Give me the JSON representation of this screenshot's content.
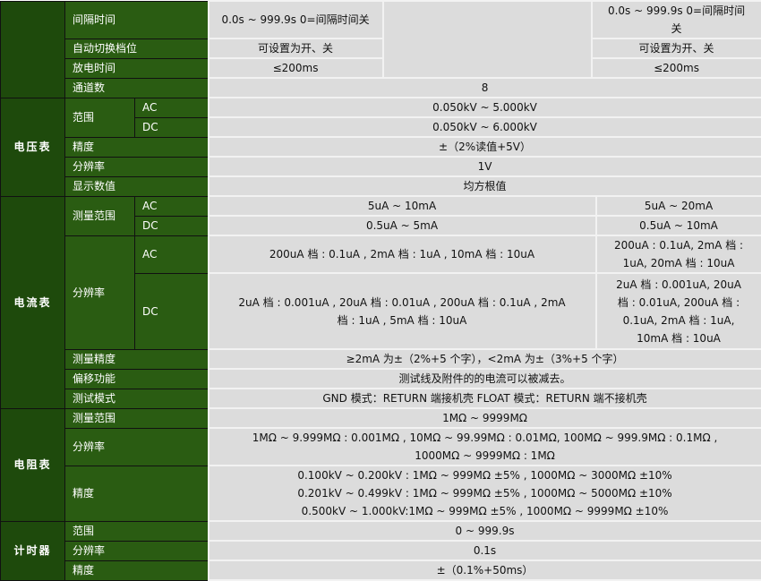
{
  "top": {
    "interval": {
      "label": "间隔时间",
      "a": "0.0s ~ 999.9s      0=间隔时间关",
      "b": "0.0s ~ 999.9s      0=间隔时间\n关"
    },
    "auto_range": {
      "label": "自动切换档位",
      "a": "可设置为开、关",
      "b": "可设置为开、关"
    },
    "discharge": {
      "label": "放电时间",
      "a": "≤200ms",
      "b": "≤200ms"
    },
    "channels": {
      "label": "通道数",
      "value": "8"
    }
  },
  "voltmeter": {
    "title": "电压表",
    "range_label": "范围",
    "ac_label": "AC",
    "ac": "0.050kV ~ 5.000kV",
    "dc_label": "DC",
    "dc": "0.050kV ~ 6.000kV",
    "accuracy_label": "精度",
    "accuracy": "±（2%读值+5V）",
    "resolution_label": "分辨率",
    "resolution": "1V",
    "display_label": "显示数值",
    "display": "均方根值"
  },
  "ammeter": {
    "title": "电流表",
    "range_label": "测量范围",
    "range_ac_label": "AC",
    "range_ac_a": "5uA ~ 10mA",
    "range_ac_b": "5uA ~ 20mA",
    "range_dc_label": "DC",
    "range_dc_a": "0.5uA ~ 5mA",
    "range_dc_b": "0.5uA ~ 10mA",
    "res_label": "分辨率",
    "res_ac_label": "AC",
    "res_ac_a": "200uA 档 : 0.1uA , 2mA 档 : 1uA ,              10mA 档 : 10uA",
    "res_ac_b": "200uA : 0.1uA,   2mA 档 :\n1uA, 20mA 档 : 10uA",
    "res_dc_label": "DC",
    "res_dc_a": "2uA 档 : 0.001uA , 20uA 档 : 0.01uA ,              200uA 档 : 0.1uA , 2mA\n档 : 1uA ,                   5mA 档 : 10uA",
    "res_dc_b": "2uA 档 : 0.001uA,  20uA\n档 : 0.01uA, 200uA 档 :\n0.1uA,   2mA 档 : 1uA,\n10mA 档 : 10uA",
    "accuracy_label": "测量精度",
    "accuracy": "≥2mA 为±（2%+5 个字），<2mA 为±（3%+5 个字）",
    "offset_label": "偏移功能",
    "offset": "测试线及附件的的电流可以被减去。",
    "mode_label": "测试模式",
    "mode": "GND 模式：RETURN 端接机壳  FLOAT 模式：RETURN 端不接机壳"
  },
  "ohmmeter": {
    "title": "电阻表",
    "range_label": "测量范围",
    "range": "1MΩ ~ 9999MΩ",
    "res_label": "分辨率",
    "res": "1MΩ ~ 9.999MΩ : 0.001MΩ , 10MΩ ~ 99.99MΩ : 0.01MΩ,               100MΩ ~ 999.9MΩ : 0.1MΩ ,\n1000MΩ ~ 9999MΩ : 1MΩ",
    "accuracy_label": "精度",
    "accuracy": "0.100kV ~ 0.200kV : 1MΩ ~ 999MΩ ±5% ,                 1000MΩ ~ 3000MΩ ±10%\n0.201kV ~ 0.499kV : 1MΩ ~ 999MΩ ±5% ,                 1000MΩ ~ 5000MΩ ±10%\n0.500kV ~ 1.000kV:1MΩ ~ 999MΩ ±5% ,                     1000MΩ ~ 9999MΩ ±10%"
  },
  "timer": {
    "title": "计时器",
    "range_label": "范围",
    "range": "0 ~ 999.9s",
    "res_label": "分辨率",
    "res": "0.1s",
    "accuracy_label": "精度",
    "accuracy": "±（0.1%+50ms）"
  },
  "colors": {
    "dark_green": "#1e4a0c",
    "green": "#2a5c12",
    "cell_gray": "#dcdcdc"
  }
}
